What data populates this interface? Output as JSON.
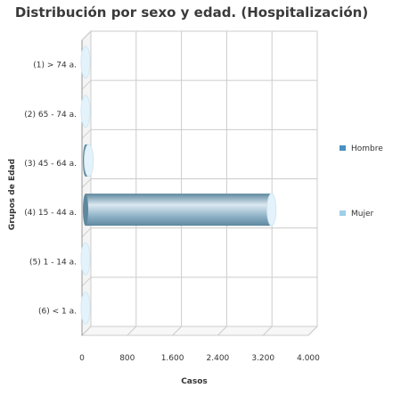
{
  "chart_data": {
    "type": "bar",
    "orientation": "horizontal",
    "title": "Distribución por sexo y edad. (Hospitalización)",
    "xlabel": "Casos",
    "ylabel": "Grupos de Edad",
    "categories": [
      "(1) > 74 a.",
      "(2) 65 - 74 a.",
      "(3) 45 - 64 a.",
      "(4) 15 - 44 a.",
      "(5) 1 - 14 a.",
      "(6) < 1 a."
    ],
    "series": [
      {
        "name": "Hombre",
        "values": [
          0,
          0,
          0,
          0,
          0,
          0
        ]
      },
      {
        "name": "Mujer",
        "values": [
          20,
          40,
          120,
          3350,
          0,
          0
        ]
      }
    ],
    "xlim": [
      0,
      4000
    ],
    "xticks": [
      "0",
      "800",
      "1.600",
      "2.400",
      "3.200",
      "4.000"
    ],
    "xtick_values": [
      0,
      800,
      1600,
      2400,
      3200,
      4000
    ],
    "grid": true,
    "legend_position": "right",
    "colors": {
      "Hombre": "#4a90c0",
      "Mujer": "#9ecfe8",
      "bar_main": "#8fb3c8",
      "bar_dark": "#5e889e",
      "grid": "#cccccc"
    }
  }
}
